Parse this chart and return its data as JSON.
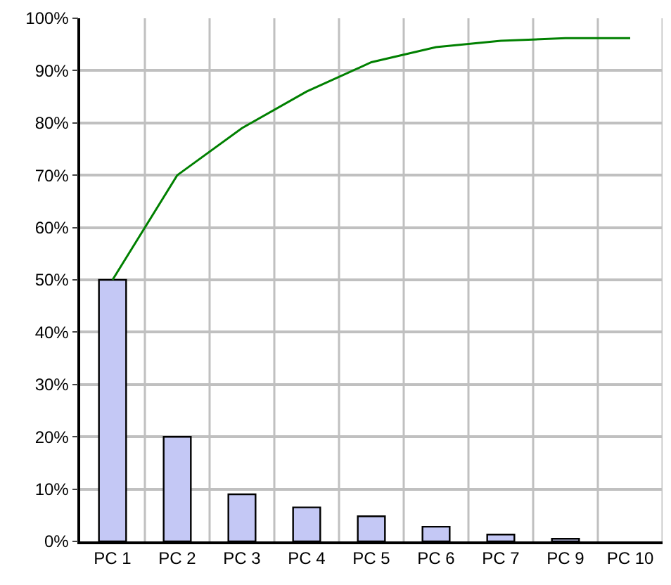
{
  "chart_data": {
    "type": "bar",
    "categories": [
      "PC 1",
      "PC 2",
      "PC 3",
      "PC 4",
      "PC 5",
      "PC 6",
      "PC 7",
      "PC 9",
      "PC 10"
    ],
    "series": [
      {
        "color": "#c4c8f5",
        "values": [
          50,
          20,
          9,
          6.5,
          4.8,
          2.8,
          1.3,
          0.5,
          null
        ]
      },
      {
        "type": "line",
        "color": "#008000",
        "values": [
          50,
          70,
          79,
          86,
          91.6,
          94.5,
          95.7,
          96.2,
          96.2
        ]
      }
    ],
    "ylim": [
      0,
      100
    ],
    "yticks": [
      {
        "value": 0,
        "label": "0%"
      },
      {
        "value": 10,
        "label": "10%"
      },
      {
        "value": 20,
        "label": "20%"
      },
      {
        "value": 30,
        "label": "30%"
      },
      {
        "value": 40,
        "label": "40%"
      },
      {
        "value": 50,
        "label": "50%"
      },
      {
        "value": 60,
        "label": "60%"
      },
      {
        "value": 70,
        "label": "70%"
      },
      {
        "value": 80,
        "label": "80%"
      },
      {
        "value": 90,
        "label": "90%"
      },
      {
        "value": 100,
        "label": "100%"
      }
    ],
    "grid": true,
    "marker": "none"
  }
}
